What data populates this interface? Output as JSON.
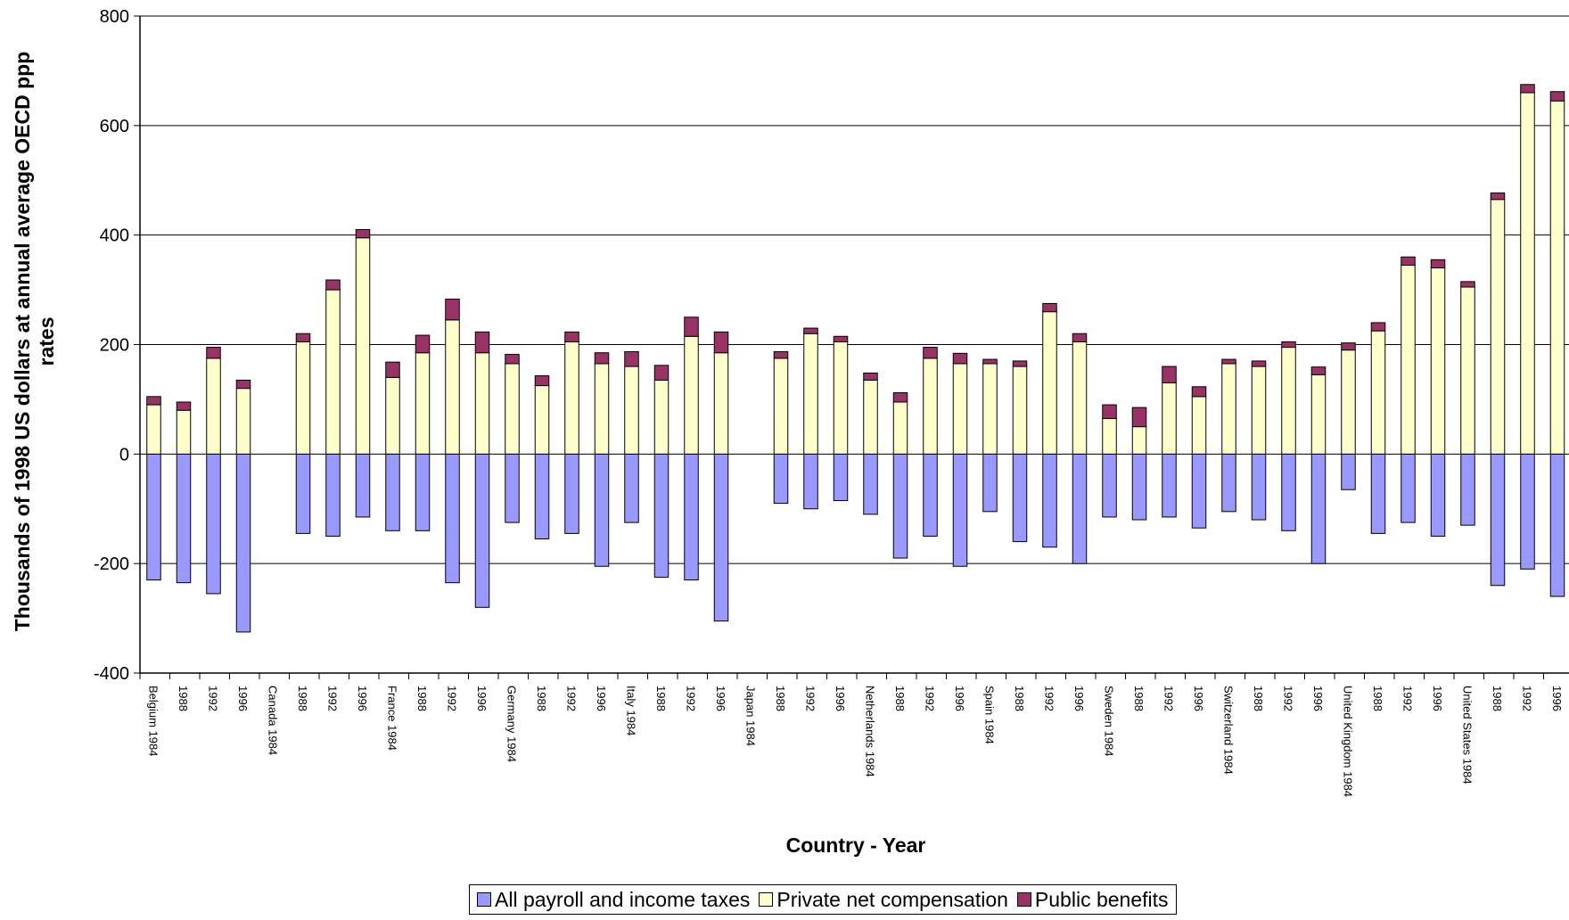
{
  "chart_data": {
    "type": "bar",
    "stacked": true,
    "title": "",
    "xlabel": "Country - Year",
    "ylabel": "Thousands of 1998 US dollars at annual average OECD ppp rates",
    "ylim": [
      -400,
      800
    ],
    "yticks": [
      -400,
      -200,
      0,
      200,
      400,
      600,
      800
    ],
    "grid": true,
    "legend_position": "bottom",
    "categories": [
      "Belgium 1984",
      "1988",
      "1992",
      "1996",
      "Canada 1984",
      "1988",
      "1992",
      "1996",
      "France 1984",
      "1988",
      "1992",
      "1996",
      "Germany 1984",
      "1988",
      "1992",
      "1996",
      "Italy 1984",
      "1988",
      "1992",
      "1996",
      "Japan 1984",
      "1988",
      "1992",
      "1996",
      "Netherlands 1984",
      "1988",
      "1992",
      "1996",
      "Spain 1984",
      "1988",
      "1992",
      "1996",
      "Sweden 1984",
      "1988",
      "1992",
      "1996",
      "Switzerland 1984",
      "1988",
      "1992",
      "1996",
      "United Kingdom 1984",
      "1988",
      "1992",
      "1996",
      "United States 1984",
      "1988",
      "1992",
      "1996"
    ],
    "series": [
      {
        "name": "All payroll and income taxes",
        "color": "#9999FF",
        "values": [
          -230,
          -235,
          -255,
          -325,
          0,
          -145,
          -150,
          -115,
          -140,
          -140,
          -235,
          -280,
          -125,
          -155,
          -145,
          -205,
          -125,
          -225,
          -230,
          -305,
          0,
          -90,
          -100,
          -85,
          -110,
          -190,
          -150,
          -205,
          -105,
          -160,
          -170,
          -200,
          -115,
          -120,
          -115,
          -135,
          -105,
          -120,
          -140,
          -200,
          -65,
          -145,
          -125,
          -150,
          -130,
          -240,
          -210,
          -260
        ]
      },
      {
        "name": "Private net compensation",
        "color": "#FFFFCC",
        "values": [
          90,
          80,
          175,
          120,
          0,
          205,
          300,
          395,
          140,
          185,
          245,
          185,
          165,
          125,
          205,
          165,
          160,
          135,
          215,
          185,
          0,
          175,
          220,
          205,
          135,
          95,
          175,
          165,
          165,
          160,
          260,
          205,
          65,
          50,
          130,
          105,
          165,
          160,
          195,
          145,
          190,
          225,
          345,
          340,
          305,
          465,
          660,
          645
        ]
      },
      {
        "name": "Public benefits",
        "color": "#993366",
        "values": [
          15,
          15,
          20,
          15,
          0,
          15,
          18,
          15,
          28,
          32,
          38,
          38,
          17,
          18,
          18,
          20,
          27,
          27,
          35,
          38,
          0,
          12,
          10,
          10,
          13,
          17,
          20,
          19,
          8,
          10,
          15,
          15,
          25,
          35,
          30,
          18,
          8,
          10,
          10,
          14,
          13,
          15,
          15,
          15,
          10,
          12,
          15,
          17
        ]
      }
    ]
  }
}
